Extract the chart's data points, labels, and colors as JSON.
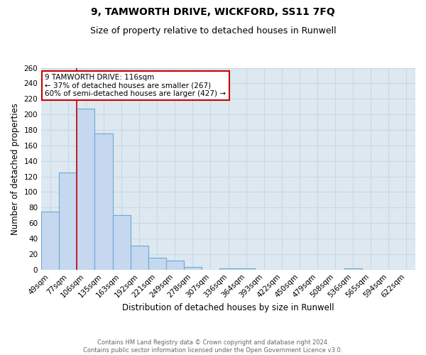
{
  "title1": "9, TAMWORTH DRIVE, WICKFORD, SS11 7FQ",
  "title2": "Size of property relative to detached houses in Runwell",
  "xlabel": "Distribution of detached houses by size in Runwell",
  "ylabel": "Number of detached properties",
  "categories": [
    "49sqm",
    "77sqm",
    "106sqm",
    "135sqm",
    "163sqm",
    "192sqm",
    "221sqm",
    "249sqm",
    "278sqm",
    "307sqm",
    "336sqm",
    "364sqm",
    "393sqm",
    "422sqm",
    "450sqm",
    "479sqm",
    "508sqm",
    "536sqm",
    "565sqm",
    "594sqm",
    "622sqm"
  ],
  "values": [
    75,
    125,
    207,
    175,
    70,
    31,
    15,
    12,
    3,
    0,
    2,
    2,
    0,
    0,
    0,
    0,
    0,
    2,
    0,
    0,
    0
  ],
  "bar_color": "#c5d8ef",
  "bar_edge_color": "#6aaad4",
  "red_line_x": 1.5,
  "annotation_line1": "9 TAMWORTH DRIVE: 116sqm",
  "annotation_line2": "← 37% of detached houses are smaller (267)",
  "annotation_line3": "60% of semi-detached houses are larger (427) →",
  "annotation_box_color": "#ffffff",
  "annotation_box_edge": "#cc0000",
  "red_line_color": "#cc0000",
  "axes_bg_color": "#dde8f0",
  "fig_bg_color": "#ffffff",
  "grid_color": "#c8d8e8",
  "ylim": [
    0,
    260
  ],
  "yticks": [
    0,
    20,
    40,
    60,
    80,
    100,
    120,
    140,
    160,
    180,
    200,
    220,
    240,
    260
  ],
  "footer": "Contains HM Land Registry data © Crown copyright and database right 2024.\nContains public sector information licensed under the Open Government Licence v3.0.",
  "title1_fontsize": 10,
  "title2_fontsize": 9,
  "xlabel_fontsize": 8.5,
  "ylabel_fontsize": 8.5,
  "tick_fontsize": 7.5,
  "annotation_fontsize": 7.5
}
